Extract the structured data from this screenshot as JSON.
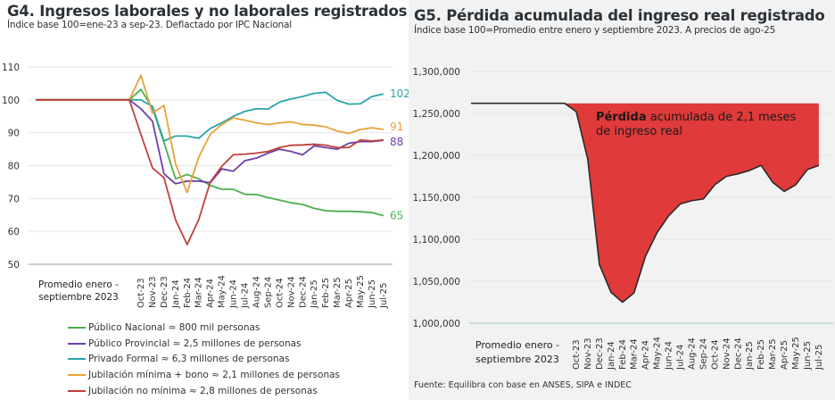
{
  "colors": {
    "publico_nacional": "#4caf50",
    "publico_provincial": "#6f3fa8",
    "privado_formal": "#2aa3a8",
    "jubilacion_minima_bono": "#e8a13a",
    "jubilacion_no_minima": "#c0403a",
    "loss_fill": "#e03a3a",
    "loss_line": "#2a2a2a",
    "grid": "#e6e6e6",
    "axis": "#b0b0b0"
  },
  "chart_data": [
    {
      "id": "g4",
      "type": "line",
      "title": "G4. Ingresos laborales y no laborales registrados",
      "subtitle": "Índice base 100=ene-23 a sep-23. Deflactado por IPC Nacional",
      "xlabel": "",
      "ylabel": "",
      "ylim": [
        50,
        110
      ],
      "yticks": [
        "50",
        "60",
        "70",
        "80",
        "90",
        "100",
        "110"
      ],
      "grid": true,
      "baseline_label": [
        "Promedio enero -",
        "septiembre 2023"
      ],
      "categories": [
        "Sep-23",
        "Oct-23",
        "Nov-23",
        "Dec-23",
        "Jan-24",
        "Feb-24",
        "Mar-24",
        "Apr-24",
        "May-24",
        "Jun-24",
        "Jul-24",
        "Aug-24",
        "Sep-24",
        "Oct-24",
        "Nov-24",
        "Dec-24",
        "Jan-25",
        "Feb-25",
        "Mar-25",
        "Apr-25",
        "May-25",
        "Jun-25",
        "Jul-25"
      ],
      "xtick_labels": [
        "Oct-23",
        "Nov-23",
        "Dec-23",
        "Jan-24",
        "Feb-24",
        "Mar-24",
        "Apr-24",
        "May-24",
        "Jun-24",
        "Jul-24",
        "Aug-24",
        "Sep-24",
        "Oct-24",
        "Nov-24",
        "Dec-24",
        "Jan-25",
        "Feb-25",
        "Mar-25",
        "Apr-25",
        "May-25",
        "Jun-25",
        "Jul-25"
      ],
      "baseline_value": 100,
      "series": [
        {
          "key": "publico_nacional",
          "name": "Público Nacional ≈ 800 mil personas",
          "end_label": "65",
          "values": [
            100,
            103.2,
            97.5,
            87,
            76,
            77.3,
            76,
            74,
            72.8,
            72.8,
            71.3,
            71.2,
            70.3,
            69.5,
            68.7,
            68.2,
            67,
            66.3,
            66.1,
            66.1,
            66,
            65.7,
            64.8
          ]
        },
        {
          "key": "publico_provincial",
          "name": "Público Provincial ≈ 2,5 millones de personas",
          "end_label": "88",
          "values": [
            100,
            97.3,
            93.5,
            77.5,
            74.5,
            75.3,
            75.3,
            74.8,
            79,
            78.3,
            81.5,
            82.3,
            83.8,
            85,
            84.3,
            83.3,
            86,
            85.5,
            85,
            86.8,
            87.3,
            87.3,
            87.7
          ]
        },
        {
          "key": "privado_formal",
          "name": "Privado Formal ≈ 6,3 millones de personas",
          "end_label": "102",
          "values": [
            100,
            100,
            98,
            87.5,
            89,
            89,
            88.3,
            91.3,
            93,
            95,
            96.5,
            97.3,
            97.2,
            99.3,
            100.3,
            101,
            102,
            102.3,
            99.8,
            98.7,
            98.8,
            101,
            101.8
          ]
        },
        {
          "key": "jubilacion_minima_bono",
          "name": "Jubilación mínima + bono ≈ 2,1 millones de personas",
          "end_label": "91",
          "values": [
            100,
            107.5,
            96,
            98.3,
            80.5,
            71.8,
            82.5,
            89.5,
            92.5,
            94.5,
            93.8,
            93,
            92.5,
            93,
            93.3,
            92.5,
            92.3,
            91.8,
            90.5,
            89.8,
            91,
            91.5,
            91
          ]
        },
        {
          "key": "jubilacion_no_minima",
          "name": "Jubilación no mínima ≈ 2,8 millones de personas",
          "end_label": "",
          "values": [
            100,
            89.5,
            79.3,
            76.3,
            63.5,
            56,
            63.5,
            75,
            79.8,
            83.3,
            83.5,
            83.8,
            84.3,
            85.5,
            86.2,
            86.3,
            86.5,
            86.2,
            85.5,
            85.5,
            87.8,
            87.5,
            87.8
          ]
        }
      ]
    },
    {
      "id": "g5",
      "type": "area",
      "title": "G5. Pérdida acumulada del ingreso real registrado",
      "subtitle": "Índice base 100=Promedio entre enero y septiembre 2023. A precios de ago-25",
      "xlabel": "",
      "ylabel": "",
      "ylim": [
        1000000,
        1300000
      ],
      "yticks": [
        "1,000,000",
        "1,050,000",
        "1,100,000",
        "1,150,000",
        "1,200,000",
        "1,250,000",
        "1,300,000"
      ],
      "grid": true,
      "baseline_label": [
        "Promedio enero -",
        "septiembre 2023"
      ],
      "baseline_value": 1262000,
      "categories": [
        "Sep-23",
        "Oct-23",
        "Nov-23",
        "Dec-23",
        "Jan-24",
        "Feb-24",
        "Mar-24",
        "Apr-24",
        "May-24",
        "Jun-24",
        "Jul-24",
        "Aug-24",
        "Sep-24",
        "Oct-24",
        "Nov-24",
        "Dec-24",
        "Jan-25",
        "Feb-25",
        "Mar-25",
        "Apr-25",
        "May-25",
        "Jun-25",
        "Jul-25"
      ],
      "xtick_labels": [
        "Oct-23",
        "Nov-23",
        "Dec-23",
        "Jan-24",
        "Feb-24",
        "Mar-24",
        "Apr-24",
        "May-24",
        "Jun-24",
        "Jul-24",
        "Aug-24",
        "Sep-24",
        "Oct-24",
        "Nov-24",
        "Dec-24",
        "Jan-25",
        "Feb-25",
        "Mar-25",
        "Apr-25",
        "May-25",
        "Jun-25",
        "Jul-25"
      ],
      "values": [
        1262000,
        1252000,
        1195000,
        1070000,
        1037000,
        1025000,
        1036000,
        1080000,
        1108000,
        1128000,
        1142000,
        1146000,
        1148000,
        1165000,
        1175000,
        1178000,
        1182000,
        1188000,
        1168000,
        1157000,
        1165000,
        1183000,
        1188000
      ],
      "annotation": {
        "bold": "Pérdida",
        "rest": " acumulada de 2,1 meses de ingreso real"
      },
      "source": "Fuente: Equilibra con base en ANSES, SIPA e INDEC"
    }
  ]
}
